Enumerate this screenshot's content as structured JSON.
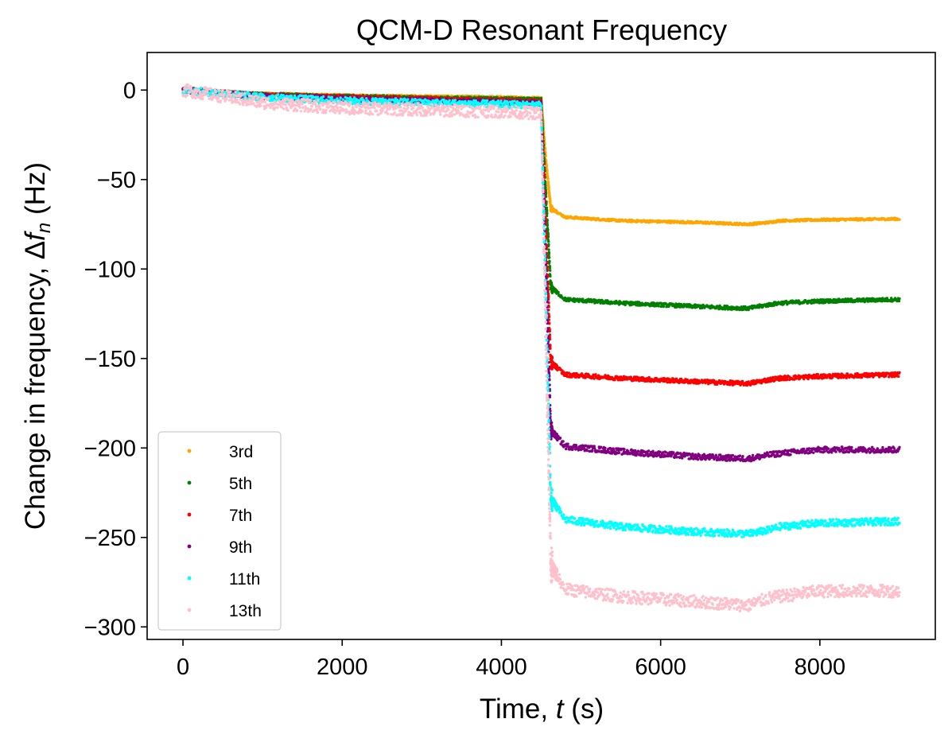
{
  "chart_data": {
    "type": "scatter",
    "title": "QCM-D Resonant Frequency",
    "xlabel": {
      "prefix": "Time, ",
      "var": "t",
      "suffix": " (s)"
    },
    "ylabel": {
      "prefix": "Change in frequency, ",
      "delta": "Δ",
      "var": "f",
      "sub": "n",
      "suffix": " (Hz)"
    },
    "xlim": [
      -450,
      9450
    ],
    "ylim": [
      -307,
      21
    ],
    "xticks": [
      0,
      2000,
      4000,
      6000,
      8000
    ],
    "yticks": [
      0,
      -50,
      -100,
      -150,
      -200,
      -250,
      -300
    ],
    "grid": false,
    "legend_position": "lower-left",
    "step_time": 4530,
    "series": [
      {
        "name": "3rd",
        "color": "#FFA500",
        "points": [
          [
            0,
            0
          ],
          [
            1000,
            -2
          ],
          [
            2000,
            -3
          ],
          [
            3000,
            -3.5
          ],
          [
            4000,
            -4
          ],
          [
            4500,
            -4.5
          ],
          [
            4560,
            -40
          ],
          [
            4620,
            -66
          ],
          [
            4800,
            -71
          ],
          [
            5500,
            -73
          ],
          [
            6500,
            -74
          ],
          [
            7100,
            -75
          ],
          [
            7350,
            -74
          ],
          [
            7500,
            -73
          ],
          [
            8000,
            -72.5
          ],
          [
            9000,
            -72
          ]
        ],
        "noise": 0.6
      },
      {
        "name": "5th",
        "color": "#008000",
        "points": [
          [
            0,
            0
          ],
          [
            1000,
            -2.5
          ],
          [
            2000,
            -3.5
          ],
          [
            3000,
            -4.5
          ],
          [
            4000,
            -5
          ],
          [
            4500,
            -5.5
          ],
          [
            4560,
            -60
          ],
          [
            4620,
            -110
          ],
          [
            4800,
            -117
          ],
          [
            5500,
            -119
          ],
          [
            6500,
            -121
          ],
          [
            7100,
            -122
          ],
          [
            7350,
            -120
          ],
          [
            7500,
            -119
          ],
          [
            8000,
            -118
          ],
          [
            9000,
            -117
          ]
        ],
        "noise": 1.0
      },
      {
        "name": "7th",
        "color": "#FF0000",
        "points": [
          [
            0,
            0
          ],
          [
            1000,
            -3
          ],
          [
            2000,
            -4
          ],
          [
            3000,
            -5
          ],
          [
            4000,
            -6
          ],
          [
            4500,
            -6.5
          ],
          [
            4560,
            -80
          ],
          [
            4620,
            -152
          ],
          [
            4800,
            -159
          ],
          [
            5500,
            -161
          ],
          [
            6500,
            -163
          ],
          [
            7100,
            -164
          ],
          [
            7350,
            -162
          ],
          [
            7500,
            -161
          ],
          [
            8000,
            -160
          ],
          [
            9000,
            -159
          ]
        ],
        "noise": 1.2
      },
      {
        "name": "9th",
        "color": "#800080",
        "points": [
          [
            0,
            0
          ],
          [
            1000,
            -3.5
          ],
          [
            2000,
            -5
          ],
          [
            3000,
            -6
          ],
          [
            4000,
            -7
          ],
          [
            4500,
            -7.5
          ],
          [
            4560,
            -100
          ],
          [
            4620,
            -190
          ],
          [
            4800,
            -199
          ],
          [
            5500,
            -202
          ],
          [
            6500,
            -205
          ],
          [
            7100,
            -206
          ],
          [
            7350,
            -204
          ],
          [
            7500,
            -203
          ],
          [
            8000,
            -201
          ],
          [
            9000,
            -201
          ]
        ],
        "noise": 1.6
      },
      {
        "name": "11th",
        "color": "#00FFFF",
        "points": [
          [
            0,
            0
          ],
          [
            1000,
            -4
          ],
          [
            2000,
            -6
          ],
          [
            3000,
            -7
          ],
          [
            4000,
            -8
          ],
          [
            4500,
            -8.5
          ],
          [
            4560,
            -120
          ],
          [
            4620,
            -228
          ],
          [
            4800,
            -240
          ],
          [
            5500,
            -244
          ],
          [
            6500,
            -247
          ],
          [
            7100,
            -248
          ],
          [
            7350,
            -246
          ],
          [
            7500,
            -244
          ],
          [
            8000,
            -242
          ],
          [
            9000,
            -241
          ]
        ],
        "noise": 2.0
      },
      {
        "name": "13th",
        "color": "#FFC0CB",
        "points": [
          [
            0,
            0
          ],
          [
            1000,
            -7
          ],
          [
            2000,
            -10
          ],
          [
            3000,
            -11
          ],
          [
            4000,
            -12
          ],
          [
            4500,
            -13
          ],
          [
            4560,
            -140
          ],
          [
            4620,
            -265
          ],
          [
            4800,
            -279
          ],
          [
            5500,
            -283
          ],
          [
            6500,
            -286
          ],
          [
            7100,
            -288
          ],
          [
            7350,
            -284
          ],
          [
            7500,
            -283
          ],
          [
            8000,
            -280
          ],
          [
            9000,
            -280
          ]
        ],
        "noise": 3.5
      }
    ]
  }
}
